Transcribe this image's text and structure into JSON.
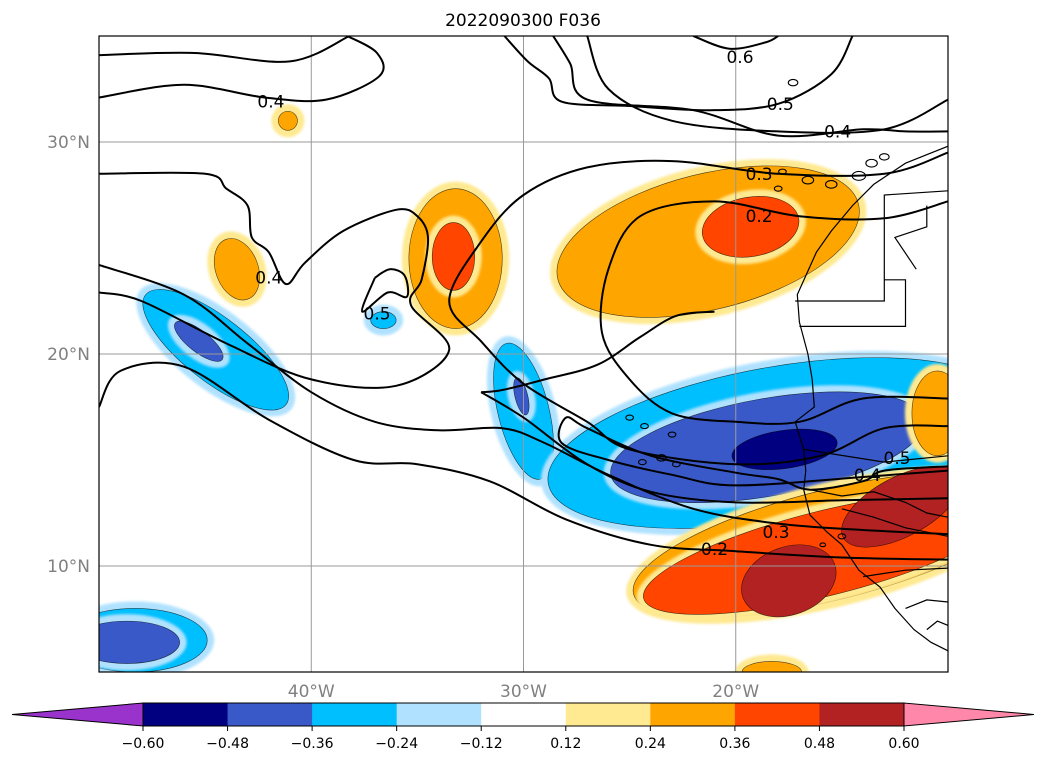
{
  "chart_data": {
    "type": "heatmap",
    "title": "2022090300 F036",
    "projection": "map",
    "extent": {
      "lon": [
        -50,
        -10
      ],
      "lat": [
        5,
        35
      ]
    },
    "grid": true,
    "x_ticks": [
      {
        "value": -40,
        "label": "40°W"
      },
      {
        "value": -30,
        "label": "30°W"
      },
      {
        "value": -20,
        "label": "20°W"
      }
    ],
    "y_ticks": [
      {
        "value": 10,
        "label": "10°N"
      },
      {
        "value": 20,
        "label": "20°N"
      },
      {
        "value": 30,
        "label": "30°N"
      }
    ],
    "colorbar": {
      "orientation": "horizontal",
      "extend": "both",
      "levels": [
        -0.6,
        -0.48,
        -0.36,
        -0.24,
        -0.12,
        0.12,
        0.24,
        0.36,
        0.48,
        0.6
      ],
      "tick_labels": [
        "−0.60",
        "−0.48",
        "−0.36",
        "−0.24",
        "−0.12",
        "0.12",
        "0.24",
        "0.36",
        "0.48",
        "0.60"
      ],
      "colors": [
        "#9933cc",
        "#000080",
        "#3a59c9",
        "#00bfff",
        "#b0e2ff",
        "#ffffff",
        "#ffe991",
        "#ffa500",
        "#ff4500",
        "#b22222",
        "#ff88aa"
      ]
    },
    "contour_labels": [
      {
        "text": "0.6",
        "lon": -19.8,
        "lat": 34.0
      },
      {
        "text": "0.5",
        "lon": -17.9,
        "lat": 31.8
      },
      {
        "text": "0.4",
        "lon": -15.2,
        "lat": 30.5
      },
      {
        "text": "0.3",
        "lon": -18.9,
        "lat": 28.5
      },
      {
        "text": "0.2",
        "lon": -18.9,
        "lat": 26.5
      },
      {
        "text": "0.4",
        "lon": -41.9,
        "lat": 31.9
      },
      {
        "text": "0.4",
        "lon": -42.0,
        "lat": 23.6
      },
      {
        "text": "0.5",
        "lon": -36.9,
        "lat": 21.9
      },
      {
        "text": "0.4",
        "lon": -13.8,
        "lat": 14.3
      },
      {
        "text": "0.5",
        "lon": -12.4,
        "lat": 15.1
      },
      {
        "text": "0.3",
        "lon": -18.1,
        "lat": 11.6
      },
      {
        "text": "0.2",
        "lon": -21.0,
        "lat": 10.8
      }
    ],
    "anomaly_regions": [
      {
        "lon": -21.3,
        "lat": 25.3,
        "rx": 7.3,
        "ry": 3.2,
        "rot": -14,
        "value": 0.26
      },
      {
        "lon": -19.3,
        "lat": 26.0,
        "rx": 2.3,
        "ry": 1.4,
        "rot": -10,
        "value": 0.4
      },
      {
        "lon": -33.2,
        "lat": 24.5,
        "rx": 2.2,
        "ry": 3.3,
        "rot": 0,
        "value": 0.34
      },
      {
        "lon": -33.3,
        "lat": 24.6,
        "rx": 1.0,
        "ry": 1.6,
        "rot": 0,
        "value": 0.4
      },
      {
        "lon": -43.5,
        "lat": 24.0,
        "rx": 1.0,
        "ry": 1.5,
        "rot": -20,
        "value": 0.28
      },
      {
        "lon": -41.1,
        "lat": 31.0,
        "rx": 0.45,
        "ry": 0.45,
        "rot": 45,
        "value": 0.3
      },
      {
        "lon": -44.5,
        "lat": 20.2,
        "rx": 4.2,
        "ry": 1.5,
        "rot": 38,
        "value": -0.3
      },
      {
        "lon": -45.3,
        "lat": 20.6,
        "rx": 1.4,
        "ry": 0.5,
        "rot": 38,
        "value": -0.4
      },
      {
        "lon": -36.6,
        "lat": 21.6,
        "rx": 0.6,
        "ry": 0.4,
        "rot": 0,
        "value": -0.25
      },
      {
        "lon": -30.0,
        "lat": 17.3,
        "rx": 1.2,
        "ry": 3.3,
        "rot": -14,
        "value": -0.3
      },
      {
        "lon": -30.1,
        "lat": 18.0,
        "rx": 0.3,
        "ry": 0.9,
        "rot": -14,
        "value": -0.38
      },
      {
        "lon": -18.0,
        "lat": 15.8,
        "rx": 11.0,
        "ry": 3.6,
        "rot": -10,
        "value": -0.3
      },
      {
        "lon": -18.5,
        "lat": 15.6,
        "rx": 7.5,
        "ry": 2.3,
        "rot": -10,
        "value": -0.4
      },
      {
        "lon": -17.7,
        "lat": 15.5,
        "rx": 2.5,
        "ry": 0.9,
        "rot": -8,
        "value": -0.5
      },
      {
        "lon": -48.3,
        "lat": 6.5,
        "rx": 3.4,
        "ry": 1.5,
        "rot": 0,
        "value": -0.3
      },
      {
        "lon": -48.7,
        "lat": 6.4,
        "rx": 2.5,
        "ry": 1.0,
        "rot": 0,
        "value": -0.4
      },
      {
        "lon": -15.5,
        "lat": 11.0,
        "rx": 9.6,
        "ry": 2.6,
        "rot": -14,
        "value": 0.3
      },
      {
        "lon": -15.8,
        "lat": 10.6,
        "rx": 8.8,
        "ry": 2.0,
        "rot": -14,
        "value": 0.4
      },
      {
        "lon": -17.5,
        "lat": 9.3,
        "rx": 2.3,
        "ry": 1.6,
        "rot": -20,
        "value": 0.52
      },
      {
        "lon": -12.2,
        "lat": 12.8,
        "rx": 3.1,
        "ry": 1.4,
        "rot": -28,
        "value": 0.52
      },
      {
        "lon": -10.5,
        "lat": 17.2,
        "rx": 1.2,
        "ry": 2.0,
        "rot": 0,
        "value": 0.3
      },
      {
        "lon": -18.3,
        "lat": 5.0,
        "rx": 1.4,
        "ry": 0.5,
        "rot": 0,
        "value": 0.26
      }
    ],
    "contour_lines": [
      [
        [
          -50,
          34.1
        ],
        [
          -45.5,
          34.2
        ],
        [
          -41.0,
          33.8
        ],
        [
          -38.2,
          35.0
        ]
      ],
      [
        [
          -38.3,
          35.0
        ],
        [
          -36.9,
          34.2
        ],
        [
          -36.8,
          33.1
        ],
        [
          -39.3,
          32.0
        ],
        [
          -42.2,
          32.1
        ],
        [
          -46.0,
          32.7
        ],
        [
          -50,
          32.1
        ]
      ],
      [
        [
          -30.9,
          35.0
        ],
        [
          -29.8,
          33.8
        ],
        [
          -28.8,
          33.0
        ],
        [
          -28.2,
          31.9
        ],
        [
          -25.0,
          31.7
        ],
        [
          -21.2,
          31.5
        ],
        [
          -18.0,
          31.8
        ],
        [
          -15.5,
          33.2
        ],
        [
          -14.5,
          35.0
        ]
      ],
      [
        [
          -22.0,
          35.0
        ],
        [
          -20.3,
          34.4
        ],
        [
          -18.6,
          34.7
        ],
        [
          -18.0,
          35.0
        ]
      ],
      [
        [
          -27.0,
          35.0
        ],
        [
          -26.0,
          32.5
        ],
        [
          -23.0,
          31.0
        ],
        [
          -18.0,
          30.5
        ],
        [
          -13.0,
          30.6
        ],
        [
          -10,
          32.0
        ]
      ],
      [
        [
          -50,
          28.5
        ],
        [
          -45.0,
          28.5
        ],
        [
          -44.0,
          27.8
        ],
        [
          -43.0,
          27.0
        ],
        [
          -42.8,
          25.5
        ],
        [
          -42.0,
          24.8
        ],
        [
          -41.2,
          23.3
        ],
        [
          -40.3,
          24.3
        ],
        [
          -38.5,
          25.8
        ],
        [
          -36.0,
          26.8
        ],
        [
          -35.0,
          26.5
        ],
        [
          -34.5,
          25.5
        ],
        [
          -34.8,
          23.5
        ],
        [
          -35.3,
          22.3
        ],
        [
          -33.5,
          20.2
        ],
        [
          -36.0,
          18.5
        ],
        [
          -40.0,
          18.8
        ],
        [
          -44.0,
          20.5
        ],
        [
          -48.0,
          22.5
        ],
        [
          -50,
          22.9
        ]
      ],
      [
        [
          -37.0,
          23.6
        ],
        [
          -36.3,
          24.0
        ],
        [
          -35.6,
          23.7
        ],
        [
          -35.5,
          22.7
        ],
        [
          -36.4,
          22.9
        ],
        [
          -37.6,
          22.0
        ],
        [
          -37.0,
          23.6
        ]
      ],
      [
        [
          -28.6,
          35.0
        ],
        [
          -27.8,
          33.7
        ],
        [
          -27.0,
          32.0
        ],
        [
          -22.0,
          31.5
        ],
        [
          -18.0,
          30.3
        ],
        [
          -14.0,
          30.6
        ],
        [
          -12.0,
          30.5
        ],
        [
          -10,
          30.5
        ]
      ],
      [
        [
          -50,
          24.2
        ],
        [
          -46.0,
          22.8
        ],
        [
          -43.0,
          20.5
        ],
        [
          -40.0,
          18.2
        ],
        [
          -37.0,
          16.8
        ],
        [
          -34.0,
          16.4
        ],
        [
          -31.0,
          16.5
        ],
        [
          -29.0,
          15.8
        ],
        [
          -26.0,
          14.3
        ],
        [
          -22.0,
          12.7
        ],
        [
          -18.0,
          12.0
        ],
        [
          -14.0,
          11.7
        ],
        [
          -10,
          11.5
        ]
      ],
      [
        [
          -50,
          17.5
        ],
        [
          -49.0,
          19.2
        ],
        [
          -46.0,
          19.4
        ],
        [
          -42.0,
          16.9
        ],
        [
          -38.0,
          15.0
        ],
        [
          -35.0,
          14.8
        ],
        [
          -31.6,
          14.0
        ],
        [
          -28.0,
          12.2
        ],
        [
          -24.0,
          11.0
        ],
        [
          -20.0,
          10.7
        ],
        [
          -15.0,
          10.4
        ],
        [
          -10,
          10.3
        ]
      ],
      [
        [
          -21.0,
          22.0
        ],
        [
          -22.8,
          21.8
        ],
        [
          -24.5,
          20.8
        ],
        [
          -26.5,
          19.5
        ],
        [
          -29.0,
          18.8
        ],
        [
          -31.0,
          18.3
        ],
        [
          -32.0,
          18.2
        ]
      ],
      [
        [
          -32.0,
          18.2
        ],
        [
          -30.0,
          17.0
        ],
        [
          -27.0,
          14.8
        ],
        [
          -24.0,
          13.5
        ],
        [
          -20.0,
          13.0
        ],
        [
          -15.0,
          13.1
        ],
        [
          -10,
          13.2
        ]
      ],
      [
        [
          -10,
          14.7
        ],
        [
          -13.0,
          14.5
        ],
        [
          -14.0,
          14.0
        ],
        [
          -16.5,
          13.6
        ],
        [
          -18.0,
          14.1
        ],
        [
          -20.0,
          14.4
        ],
        [
          -24.0,
          15.2
        ],
        [
          -27.0,
          16.5
        ],
        [
          -28.0,
          17.0
        ],
        [
          -28.2,
          15.8
        ],
        [
          -26.0,
          15.0
        ],
        [
          -23.0,
          14.3
        ],
        [
          -20.0,
          13.8
        ],
        [
          -14.0,
          14.2
        ],
        [
          -10,
          14.5
        ]
      ],
      [
        [
          -10,
          16.6
        ],
        [
          -13.0,
          16.5
        ],
        [
          -16.0,
          15.2
        ],
        [
          -20.0,
          14.8
        ],
        [
          -25.0,
          15.5
        ],
        [
          -27.0,
          16.8
        ],
        [
          -30.0,
          18.6
        ],
        [
          -32.0,
          20.6
        ],
        [
          -33.5,
          22.5
        ],
        [
          -32.0,
          25.3
        ],
        [
          -30.0,
          27.5
        ],
        [
          -27.0,
          28.8
        ],
        [
          -23.0,
          29.1
        ],
        [
          -18.0,
          28.5
        ],
        [
          -13.0,
          28.5
        ],
        [
          -10,
          29.5
        ]
      ],
      [
        [
          -10,
          17.9
        ],
        [
          -14.0,
          17.9
        ],
        [
          -17.0,
          16.8
        ],
        [
          -20.0,
          16.8
        ],
        [
          -23.0,
          17.2
        ],
        [
          -25.0,
          18.8
        ],
        [
          -26.3,
          21.0
        ],
        [
          -26.0,
          24.0
        ],
        [
          -24.5,
          26.5
        ],
        [
          -21.0,
          27.2
        ],
        [
          -17.0,
          26.5
        ],
        [
          -13.0,
          26.4
        ],
        [
          -10,
          27.2
        ]
      ]
    ],
    "coastlines": [
      [
        [
          -10,
          29.8
        ],
        [
          -12.0,
          29.0
        ],
        [
          -13.5,
          28.0
        ],
        [
          -14.5,
          27.0
        ],
        [
          -15.5,
          25.8
        ],
        [
          -16.2,
          24.8
        ],
        [
          -17.1,
          22.8
        ],
        [
          -17.0,
          21.5
        ],
        [
          -16.6,
          20.0
        ],
        [
          -16.4,
          18.8
        ],
        [
          -16.3,
          17.5
        ],
        [
          -17.2,
          16.8
        ],
        [
          -16.8,
          15.5
        ],
        [
          -16.7,
          14.5
        ],
        [
          -16.8,
          13.6
        ],
        [
          -16.5,
          12.4
        ],
        [
          -15.7,
          11.6
        ],
        [
          -15.0,
          11.0
        ],
        [
          -14.2,
          9.8
        ],
        [
          -13.2,
          9.0
        ],
        [
          -12.5,
          8.0
        ],
        [
          -11.6,
          7.0
        ],
        [
          -10.8,
          6.4
        ],
        [
          -10,
          6.0
        ]
      ],
      [
        [
          -17.2,
          22.5
        ],
        [
          -13.0,
          22.5
        ],
        [
          -13.0,
          23.5
        ],
        [
          -13.0,
          27.5
        ],
        [
          -10,
          27.7
        ]
      ],
      [
        [
          -17.0,
          21.3
        ],
        [
          -12.0,
          21.3
        ],
        [
          -12.0,
          23.5
        ],
        [
          -13.0,
          23.5
        ]
      ],
      [
        [
          -11.0,
          27.0
        ],
        [
          -11.0,
          26.0
        ],
        [
          -12.5,
          25.5
        ],
        [
          -11.5,
          24.0
        ]
      ],
      [
        [
          -16.8,
          15.5
        ],
        [
          -13.0,
          14.9
        ],
        [
          -12.0,
          15.0
        ],
        [
          -10,
          15.2
        ]
      ],
      [
        [
          -16.5,
          13.6
        ],
        [
          -15.0,
          13.3
        ],
        [
          -13.5,
          13.5
        ],
        [
          -12.0,
          13.0
        ],
        [
          -11.0,
          12.5
        ],
        [
          -10,
          12.3
        ]
      ],
      [
        [
          -15.0,
          12.7
        ],
        [
          -13.5,
          12.3
        ],
        [
          -12.0,
          11.8
        ],
        [
          -10,
          11.4
        ]
      ],
      [
        [
          -14.0,
          9.5
        ],
        [
          -12.0,
          9.8
        ],
        [
          -10,
          9.9
        ]
      ],
      [
        [
          -12.0,
          8.0
        ],
        [
          -11.0,
          8.4
        ],
        [
          -10,
          8.3
        ]
      ],
      [
        [
          -11.0,
          7.0
        ],
        [
          -10.5,
          7.4
        ],
        [
          -10,
          7.2
        ]
      ]
    ],
    "islands": [
      {
        "lon": -14.2,
        "lat": 28.4,
        "r": 0.35
      },
      {
        "lon": -15.5,
        "lat": 28.0,
        "r": 0.3
      },
      {
        "lon": -16.6,
        "lat": 28.2,
        "r": 0.3
      },
      {
        "lon": -17.8,
        "lat": 28.6,
        "r": 0.2
      },
      {
        "lon": -18.0,
        "lat": 27.8,
        "r": 0.2
      },
      {
        "lon": -13.6,
        "lat": 29.0,
        "r": 0.3
      },
      {
        "lon": -13.0,
        "lat": 29.3,
        "r": 0.25
      },
      {
        "lon": -17.3,
        "lat": 32.8,
        "r": 0.25
      },
      {
        "lon": -25.0,
        "lat": 17.0,
        "r": 0.2
      },
      {
        "lon": -24.3,
        "lat": 16.6,
        "r": 0.2
      },
      {
        "lon": -23.5,
        "lat": 15.1,
        "r": 0.25
      },
      {
        "lon": -24.4,
        "lat": 14.9,
        "r": 0.2
      },
      {
        "lon": -23.0,
        "lat": 16.2,
        "r": 0.2
      },
      {
        "lon": -22.8,
        "lat": 14.8,
        "r": 0.2
      },
      {
        "lon": -15.0,
        "lat": 11.4,
        "r": 0.2
      },
      {
        "lon": -15.9,
        "lat": 11.0,
        "r": 0.15
      }
    ]
  }
}
